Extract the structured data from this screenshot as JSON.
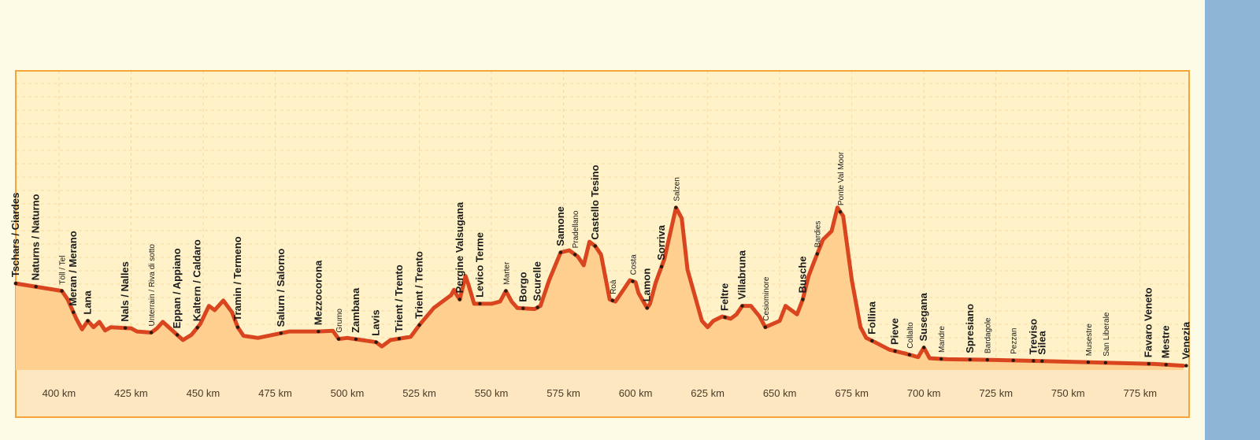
{
  "colors": {
    "frame_outer": "#8eb4d6",
    "page": "#fdfbe6",
    "plot_background": "#fff2c8",
    "area_fill": "#ffcf8f",
    "profile_line": "#d9451f",
    "grid": "#f6d9a3",
    "axis_band": "#fce7c1"
  },
  "chart_data": {
    "type": "area",
    "title": "",
    "xlabel": "",
    "ylabel": "",
    "x_unit": "km",
    "xlim": [
      385,
      792
    ],
    "ylim": [
      0,
      1400
    ],
    "grid": true,
    "x_tick_values": [
      400,
      425,
      450,
      475,
      500,
      525,
      550,
      575,
      600,
      625,
      650,
      675,
      700,
      725,
      750,
      775
    ],
    "x_ticks": [
      "400 km",
      "425 km",
      "450 km",
      "475 km",
      "500 km",
      "525 km",
      "550 km",
      "575 km",
      "600 km",
      "625 km",
      "650 km",
      "675 km",
      "700 km",
      "725 km",
      "750 km",
      "775 km"
    ],
    "profile": {
      "x": [
        385,
        401,
        403,
        406,
        408,
        410,
        412,
        414,
        416,
        418,
        425,
        427,
        432,
        434,
        436,
        443,
        446,
        449,
        452,
        454,
        457,
        460,
        462,
        464,
        469,
        480,
        490,
        495,
        497,
        500,
        505,
        510,
        512,
        515,
        522,
        525,
        530,
        536,
        537,
        538,
        539,
        541,
        542,
        544,
        550,
        553,
        555,
        557,
        559,
        565,
        567,
        570,
        574,
        577,
        580,
        582,
        584,
        586,
        588,
        591,
        593,
        596,
        598,
        600,
        601,
        604,
        605,
        607,
        610,
        614,
        616,
        618,
        623,
        625,
        627,
        630,
        633,
        635,
        637,
        640,
        643,
        645,
        650,
        652,
        656,
        658,
        660,
        662,
        665,
        668,
        670,
        672,
        675,
        678,
        680,
        683,
        688,
        694,
        698,
        700,
        702,
        708,
        720,
        740,
        760,
        780,
        790
      ],
      "y": [
        405,
        370,
        330,
        240,
        190,
        230,
        200,
        225,
        185,
        200,
        195,
        180,
        175,
        195,
        225,
        140,
        165,
        215,
        300,
        280,
        325,
        270,
        200,
        160,
        150,
        180,
        180,
        183,
        145,
        150,
        140,
        130,
        110,
        140,
        155,
        210,
        290,
        350,
        375,
        350,
        330,
        440,
        400,
        310,
        310,
        320,
        370,
        320,
        290,
        285,
        300,
        420,
        550,
        560,
        530,
        490,
        600,
        580,
        540,
        330,
        320,
        380,
        420,
        410,
        360,
        290,
        310,
        410,
        520,
        760,
        710,
        470,
        230,
        200,
        230,
        250,
        240,
        260,
        300,
        300,
        250,
        200,
        230,
        300,
        260,
        330,
        440,
        510,
        610,
        650,
        760,
        720,
        420,
        200,
        150,
        130,
        95,
        75,
        60,
        105,
        55,
        50,
        48,
        42,
        35,
        28,
        20
      ]
    },
    "places": [
      {
        "name": "Tschars / Ciardes",
        "km": 385,
        "bold": true
      },
      {
        "name": "Naturns / Naturno",
        "km": 392,
        "bold": true
      },
      {
        "name": "Töll / Tel",
        "km": 401,
        "bold": false
      },
      {
        "name": "Meran / Merano",
        "km": 405,
        "bold": true
      },
      {
        "name": "Lana",
        "km": 410,
        "bold": true
      },
      {
        "name": "Nals / Nalles",
        "km": 423,
        "bold": true
      },
      {
        "name": "Unterrain / Riva di sotto",
        "km": 432,
        "bold": false
      },
      {
        "name": "Eppan / Appiano",
        "km": 441,
        "bold": true
      },
      {
        "name": "Kaltern / Caldaro",
        "km": 448,
        "bold": true
      },
      {
        "name": "Tramin / Termeno",
        "km": 462,
        "bold": true
      },
      {
        "name": "Salurn / Salorno",
        "km": 477,
        "bold": true
      },
      {
        "name": "Mezzocorona",
        "km": 490,
        "bold": true
      },
      {
        "name": "Grumo",
        "km": 497,
        "bold": false
      },
      {
        "name": "Zambana",
        "km": 503,
        "bold": true
      },
      {
        "name": "Lavis",
        "km": 510,
        "bold": true
      },
      {
        "name": "Trient / Trento",
        "km": 518,
        "bold": true
      },
      {
        "name": "Trient / Trento",
        "km": 525,
        "bold": true
      },
      {
        "name": "Pergine Valsugana",
        "km": 539,
        "bold": true
      },
      {
        "name": "Levico Terme",
        "km": 546,
        "bold": true
      },
      {
        "name": "Marter",
        "km": 555,
        "bold": false
      },
      {
        "name": "Borgo",
        "km": 561,
        "bold": true
      },
      {
        "name": "Scurelle",
        "km": 566,
        "bold": true
      },
      {
        "name": "Samone",
        "km": 574,
        "bold": true
      },
      {
        "name": "Pradellano",
        "km": 579,
        "bold": false
      },
      {
        "name": "Castello Tesino",
        "km": 586,
        "bold": true
      },
      {
        "name": "Roà",
        "km": 592,
        "bold": false
      },
      {
        "name": "Costa",
        "km": 599,
        "bold": false
      },
      {
        "name": "Lamon",
        "km": 604,
        "bold": true
      },
      {
        "name": "Sorriva",
        "km": 609,
        "bold": true
      },
      {
        "name": "Salzen",
        "km": 614,
        "bold": false
      },
      {
        "name": "Feltre",
        "km": 631,
        "bold": true
      },
      {
        "name": "Villabruna",
        "km": 637,
        "bold": true
      },
      {
        "name": "Cesiominore",
        "km": 645,
        "bold": false
      },
      {
        "name": "Busche",
        "km": 658,
        "bold": true
      },
      {
        "name": "Bardies",
        "km": 663,
        "bold": false
      },
      {
        "name": "Ponte Val Moor",
        "km": 671,
        "bold": false
      },
      {
        "name": "Follina",
        "km": 682,
        "bold": true
      },
      {
        "name": "Pieve",
        "km": 690,
        "bold": true
      },
      {
        "name": "Collalto",
        "km": 695,
        "bold": false
      },
      {
        "name": "Susegana",
        "km": 700,
        "bold": true
      },
      {
        "name": "Mandre",
        "km": 706,
        "bold": false
      },
      {
        "name": "Spresiano",
        "km": 716,
        "bold": true
      },
      {
        "name": "Bardagole",
        "km": 722,
        "bold": false
      },
      {
        "name": "Pezzan",
        "km": 731,
        "bold": false
      },
      {
        "name": "Treviso",
        "km": 738,
        "bold": true
      },
      {
        "name": "Silea",
        "km": 741,
        "bold": true
      },
      {
        "name": "Musestre",
        "km": 757,
        "bold": false
      },
      {
        "name": "San Liberale",
        "km": 763,
        "bold": false
      },
      {
        "name": "Favaro Veneto",
        "km": 778,
        "bold": true
      },
      {
        "name": "Mestre",
        "km": 784,
        "bold": true
      },
      {
        "name": "Venezia",
        "km": 791,
        "bold": true
      }
    ]
  }
}
